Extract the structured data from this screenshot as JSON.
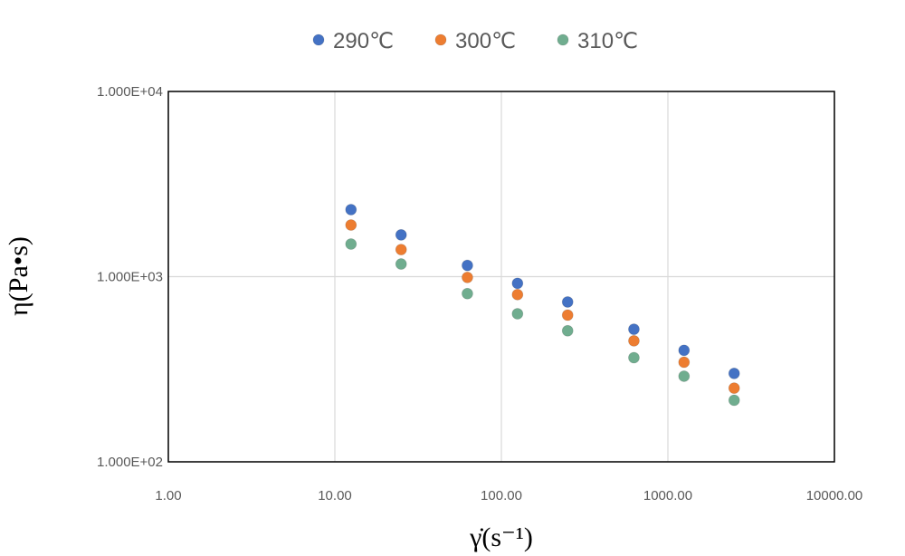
{
  "chart_data": {
    "type": "scatter",
    "title": "",
    "xlabel": "γ̇(s⁻¹)",
    "ylabel": "η(Pa•s)",
    "x_scale": "log",
    "y_scale": "log",
    "xlim": [
      1,
      10000
    ],
    "ylim": [
      100,
      10000
    ],
    "x_ticks": [
      1,
      10,
      100,
      1000,
      10000
    ],
    "x_tick_labels": [
      "1.00",
      "10.00",
      "100.00",
      "1000.00",
      "10000.00"
    ],
    "y_ticks": [
      100,
      1000,
      10000
    ],
    "y_tick_labels": [
      "1.000E+02",
      "1.000E+03",
      "1.000E+04"
    ],
    "grid": true,
    "legend_position": "top",
    "series": [
      {
        "name": "290℃",
        "color": "#4472c4",
        "x": [
          12.5,
          25,
          62.5,
          125,
          250,
          625,
          1250,
          2500
        ],
        "y": [
          2300,
          1680,
          1150,
          920,
          730,
          520,
          400,
          300
        ]
      },
      {
        "name": "300℃",
        "color": "#ed7d31",
        "x": [
          12.5,
          25,
          62.5,
          125,
          250,
          625,
          1250,
          2500
        ],
        "y": [
          1900,
          1400,
          990,
          800,
          620,
          450,
          345,
          250
        ]
      },
      {
        "name": "310℃",
        "color": "#70ad8f",
        "x": [
          12.5,
          25,
          62.5,
          125,
          250,
          625,
          1250,
          2500
        ],
        "y": [
          1500,
          1170,
          810,
          630,
          510,
          365,
          290,
          215
        ]
      }
    ]
  }
}
